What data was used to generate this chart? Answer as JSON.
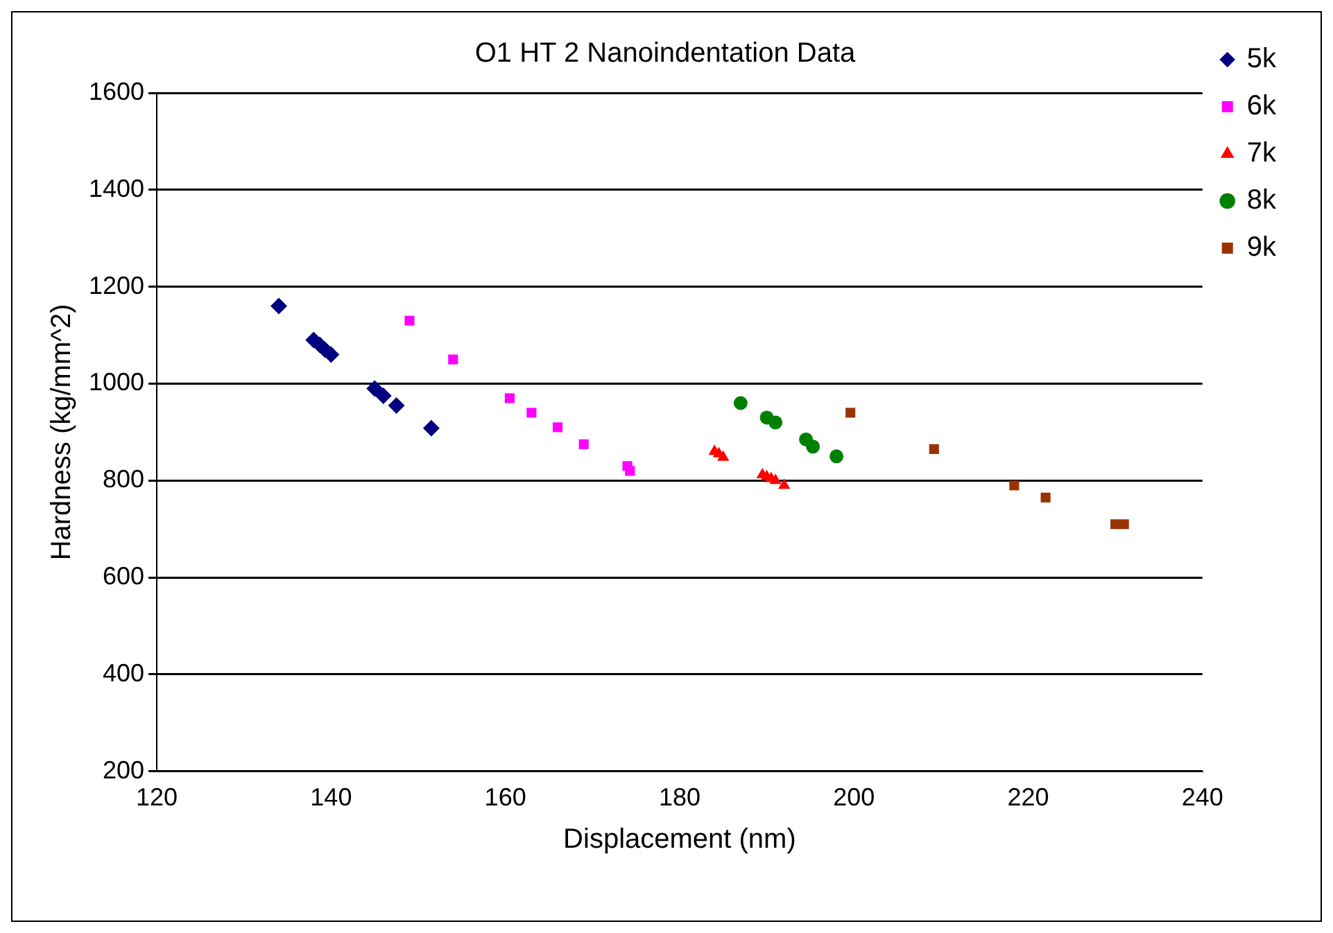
{
  "chart_data": {
    "type": "scatter",
    "title": "O1 HT 2 Nanoindentation Data",
    "xlabel": "Displacement (nm)",
    "ylabel": "Hardness (kg/mm^2)",
    "xlim": [
      120,
      240
    ],
    "xticks": [
      120,
      140,
      160,
      180,
      200,
      220,
      240
    ],
    "ylim": [
      200,
      1600
    ],
    "yticks": [
      200,
      400,
      600,
      800,
      1000,
      1200,
      1400,
      1600
    ],
    "grid": "y",
    "legend": "top right",
    "series": [
      {
        "name": "5k",
        "color": "#000080",
        "marker": "diamond",
        "x": [
          134,
          138,
          138.7,
          139.3,
          140,
          145,
          146,
          147.5,
          151.5
        ],
        "values": [
          1160,
          1090,
          1080,
          1070,
          1060,
          990,
          975,
          955,
          908
        ]
      },
      {
        "name": "6k",
        "color": "#ff00ff",
        "marker": "square",
        "x": [
          149,
          154,
          160.5,
          163,
          166,
          169,
          174,
          174.3
        ],
        "values": [
          1130,
          1050,
          970,
          940,
          910,
          875,
          830,
          820
        ]
      },
      {
        "name": "7k",
        "color": "#ff0000",
        "marker": "triangle",
        "x": [
          184,
          184.5,
          185,
          189.5,
          190,
          190.5,
          191,
          192
        ],
        "values": [
          860,
          855,
          848,
          812,
          808,
          804,
          800,
          790
        ]
      },
      {
        "name": "8k",
        "color": "#008000",
        "marker": "circle",
        "x": [
          187,
          190,
          191,
          194.5,
          195.3,
          198
        ],
        "values": [
          960,
          930,
          920,
          885,
          870,
          850
        ]
      },
      {
        "name": "9k",
        "color": "#993300",
        "marker": "square",
        "x": [
          199.6,
          209.2,
          218.4,
          222,
          230,
          231
        ],
        "values": [
          940,
          865,
          790,
          765,
          710,
          710
        ]
      }
    ]
  }
}
